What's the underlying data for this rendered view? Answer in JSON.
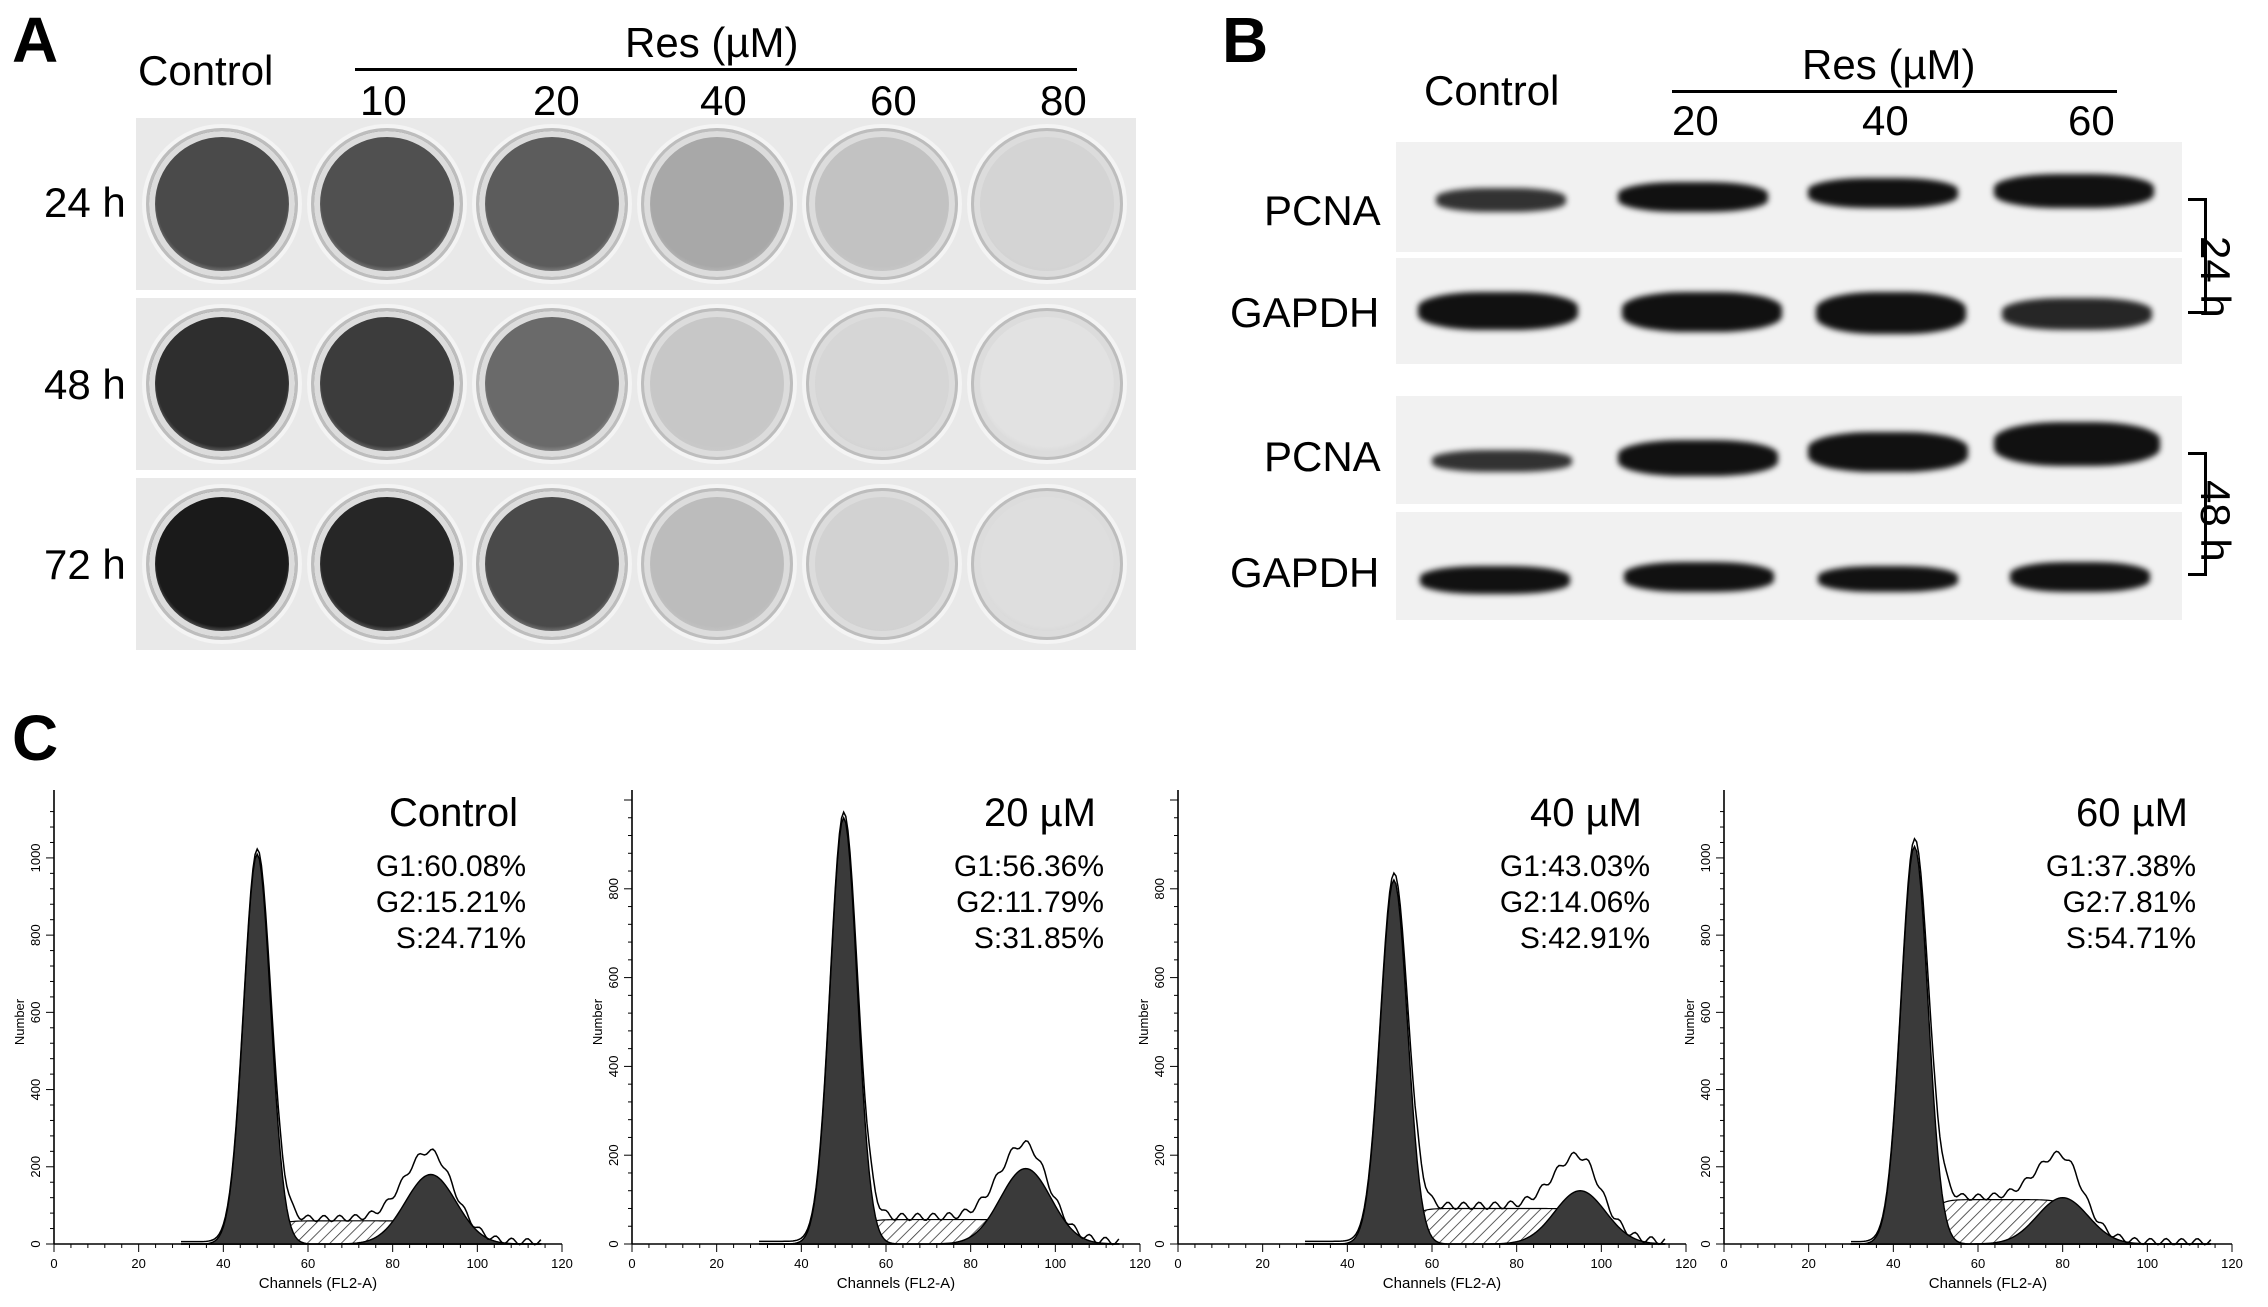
{
  "panel_a": {
    "letter": "A",
    "control_label": "Control",
    "res_label": "Res (µM)",
    "concentrations": [
      "10",
      "20",
      "40",
      "60",
      "80"
    ],
    "time_labels": [
      "24 h",
      "48 h",
      "72 h"
    ],
    "well_colors": [
      [
        "#4a4a4a",
        "#505050",
        "#5c5c5c",
        "#a8a8a8",
        "#c2c2c2",
        "#d4d4d4"
      ],
      [
        "#2e2e2e",
        "#3c3c3c",
        "#6a6a6a",
        "#c7c7c7",
        "#d6d6d6",
        "#e2e2e2"
      ],
      [
        "#1a1a1a",
        "#262626",
        "#4a4a4a",
        "#bcbcbc",
        "#d2d2d2",
        "#dedede"
      ]
    ]
  },
  "panel_b": {
    "letter": "B",
    "control_label": "Control",
    "res_label": "Res (µM)",
    "concentrations": [
      "20",
      "40",
      "60"
    ],
    "row_labels": [
      "PCNA",
      "GAPDH",
      "PCNA",
      "GAPDH"
    ],
    "time_labels": [
      "24 h",
      "48 h"
    ]
  },
  "panel_c": {
    "letter": "C",
    "xlabel": "Channels (FL2-A)",
    "ylabel": "Number",
    "plots": [
      {
        "title": "Control",
        "g1": "G1:60.08%",
        "g2": "G2:15.21%",
        "s": "S:24.71%",
        "yticks": [
          "0",
          "200",
          "400",
          "600",
          "800",
          "1000"
        ],
        "ymax": 1150,
        "g1_mean": 48,
        "g1_peak": 1010,
        "g2_mean": 89,
        "g2_peak": 180,
        "s_level": 60
      },
      {
        "title": "20 µM",
        "g1": "G1:56.36%",
        "g2": "G2:11.79%",
        "s": "S:31.85%",
        "yticks": [
          "0",
          "200",
          "400",
          "600",
          "800"
        ],
        "ymax": 1000,
        "g1_mean": 50,
        "g1_peak": 960,
        "g2_mean": 93,
        "g2_peak": 170,
        "s_level": 55
      },
      {
        "title": "40 µM",
        "g1": "G1:43.03%",
        "g2": "G2:14.06%",
        "s": "S:42.91%",
        "yticks": [
          "0",
          "200",
          "400",
          "600",
          "800"
        ],
        "ymax": 1000,
        "g1_mean": 51,
        "g1_peak": 820,
        "g2_mean": 95,
        "g2_peak": 120,
        "s_level": 80
      },
      {
        "title": "60 µM",
        "g1": "G1:37.38%",
        "g2": "G2:7.81%",
        "s": "S:54.71%",
        "yticks": [
          "0",
          "200",
          "400",
          "600",
          "800",
          "1000"
        ],
        "ymax": 1150,
        "g1_mean": 45,
        "g1_peak": 1030,
        "g2_mean": 80,
        "g2_peak": 120,
        "s_level": 115
      }
    ],
    "xticks": [
      "0",
      "20",
      "40",
      "60",
      "80",
      "100",
      "120"
    ]
  }
}
